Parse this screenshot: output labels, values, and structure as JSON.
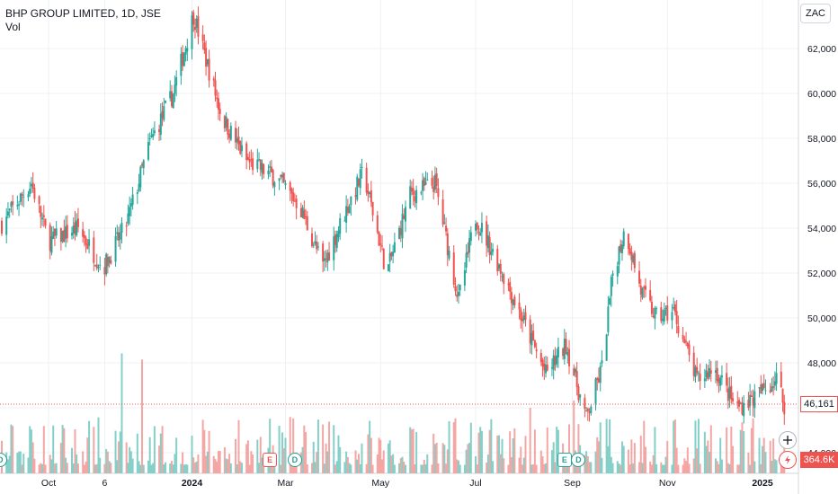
{
  "header": {
    "title": "BHP GROUP LIMITED, 1D, JSE",
    "indicator": "Vol"
  },
  "scale_button": "ZAC",
  "last_price_label": "46,161",
  "last_volume_label": "364.6K",
  "events": [
    {
      "letter": "D",
      "date": "2023-08-31",
      "kind": "dividend"
    },
    {
      "letter": "E",
      "date": "2024-02-20",
      "kind": "earnings"
    },
    {
      "letter": "D",
      "date": "2024-03-07",
      "kind": "dividend"
    },
    {
      "letter": "E",
      "date": "2024-08-27",
      "kind": "earnings"
    },
    {
      "letter": "D",
      "date": "2024-09-05",
      "kind": "dividend"
    }
  ],
  "chart_data": {
    "type": "candlestick",
    "title": "BHP GROUP LIMITED, 1D, JSE",
    "currency": "ZAC",
    "x_tick_labels": [
      "Oct",
      "6",
      "2024",
      "Mar",
      "May",
      "Jul",
      "Sep",
      "Nov",
      "2025"
    ],
    "y_tick_labels": [
      "62,000",
      "60,000",
      "58,000",
      "56,000",
      "54,000",
      "52,000",
      "50,000",
      "48,000",
      "46,000",
      "44,000"
    ],
    "ylim": [
      43800,
      64000
    ],
    "last_price": 46161,
    "last_volume": "364.6K",
    "price_path_approx": [
      {
        "date": "2023-09-01",
        "close": 54200
      },
      {
        "date": "2023-09-20",
        "close": 56000
      },
      {
        "date": "2023-10-01",
        "close": 53400
      },
      {
        "date": "2023-10-20",
        "close": 54000
      },
      {
        "date": "2023-11-05",
        "close": 52200
      },
      {
        "date": "2023-11-20",
        "close": 54200
      },
      {
        "date": "2023-12-05",
        "close": 57800
      },
      {
        "date": "2023-12-20",
        "close": 60000
      },
      {
        "date": "2024-01-02",
        "close": 63500
      },
      {
        "date": "2024-01-20",
        "close": 59000
      },
      {
        "date": "2024-02-05",
        "close": 57000
      },
      {
        "date": "2024-02-25",
        "close": 56200
      },
      {
        "date": "2024-03-10",
        "close": 55000
      },
      {
        "date": "2024-03-25",
        "close": 52300
      },
      {
        "date": "2024-04-10",
        "close": 55000
      },
      {
        "date": "2024-04-20",
        "close": 56500
      },
      {
        "date": "2024-05-05",
        "close": 52000
      },
      {
        "date": "2024-05-20",
        "close": 55500
      },
      {
        "date": "2024-06-05",
        "close": 56000
      },
      {
        "date": "2024-06-20",
        "close": 50800
      },
      {
        "date": "2024-07-01",
        "close": 54500
      },
      {
        "date": "2024-07-15",
        "close": 52500
      },
      {
        "date": "2024-08-01",
        "close": 49800
      },
      {
        "date": "2024-08-15",
        "close": 47500
      },
      {
        "date": "2024-08-28",
        "close": 48800
      },
      {
        "date": "2024-09-10",
        "close": 45500
      },
      {
        "date": "2024-09-20",
        "close": 47800
      },
      {
        "date": "2024-09-27",
        "close": 52000
      },
      {
        "date": "2024-10-05",
        "close": 54000
      },
      {
        "date": "2024-10-15",
        "close": 51200
      },
      {
        "date": "2024-10-25",
        "close": 50000
      },
      {
        "date": "2024-11-05",
        "close": 50300
      },
      {
        "date": "2024-11-20",
        "close": 47200
      },
      {
        "date": "2024-12-01",
        "close": 47800
      },
      {
        "date": "2024-12-15",
        "close": 46000
      },
      {
        "date": "2024-12-28",
        "close": 46500
      },
      {
        "date": "2025-01-10",
        "close": 47300
      },
      {
        "date": "2025-01-15",
        "close": 46161
      }
    ],
    "colors": {
      "up": "#26a69a",
      "down": "#ef5350",
      "up_vol": "#84d0c8",
      "down_vol": "#f4a6a4",
      "grid": "#eef0f4",
      "last_line": "#ef5350"
    }
  }
}
